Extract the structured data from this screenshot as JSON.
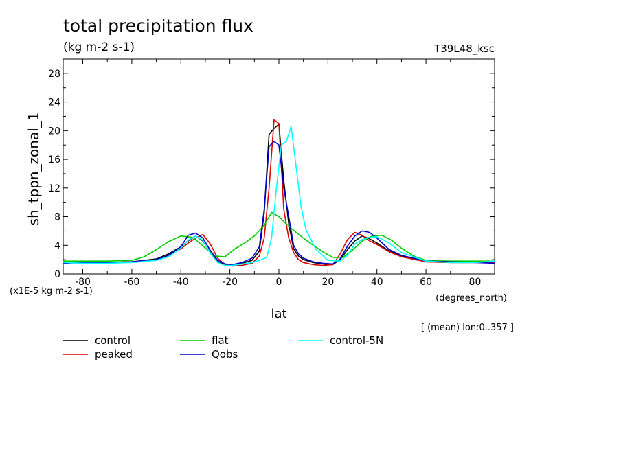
{
  "chart_data": {
    "type": "line",
    "title": "total precipitation flux",
    "subtitle": "(kg m-2 s-1)",
    "run_tag": "T39L48_ksc",
    "xlabel": "lat",
    "xunits": "(degrees_north)",
    "ylabel": "sh_tppn_zonal_1",
    "yscale_note": "(x1E-5 kg m-2 s-1)",
    "mean_note": "[ (mean) lon:0..357 ]",
    "xlim": [
      -88,
      88
    ],
    "ylim": [
      0,
      30
    ],
    "xticks": [
      -80,
      -60,
      -40,
      -20,
      0,
      20,
      40,
      60,
      80
    ],
    "yticks": [
      0,
      4,
      8,
      12,
      16,
      20,
      24,
      28
    ],
    "grid": false,
    "legend_position": "bottom",
    "series": [
      {
        "name": "control",
        "color": "#000000",
        "x": [
          -88,
          -80,
          -70,
          -60,
          -50,
          -45,
          -40,
          -37,
          -34,
          -31,
          -28,
          -25,
          -22,
          -19,
          -15,
          -11,
          -8,
          -6,
          -4,
          -2,
          0,
          2,
          4,
          6,
          8,
          10,
          14,
          18,
          22,
          25,
          28,
          31,
          34,
          37,
          40,
          45,
          50,
          60,
          70,
          80,
          88
        ],
        "y": [
          1.7,
          1.6,
          1.6,
          1.7,
          2.1,
          2.8,
          3.8,
          4.6,
          5.3,
          4.6,
          3.0,
          1.7,
          1.3,
          1.3,
          1.5,
          1.9,
          3.2,
          8.5,
          19.5,
          20.3,
          20.9,
          13.0,
          7.0,
          3.5,
          2.5,
          2.0,
          1.6,
          1.4,
          1.3,
          2.0,
          3.4,
          4.6,
          5.3,
          4.9,
          4.3,
          3.2,
          2.5,
          1.7,
          1.6,
          1.6,
          1.7
        ]
      },
      {
        "name": "peaked",
        "color": "#dd0000",
        "x": [
          -88,
          -80,
          -70,
          -60,
          -50,
          -45,
          -40,
          -37,
          -34,
          -31,
          -28,
          -25,
          -22,
          -19,
          -15,
          -11,
          -8,
          -6,
          -4,
          -2,
          0,
          2,
          4,
          6,
          8,
          10,
          14,
          18,
          22,
          25,
          28,
          31,
          34,
          37,
          40,
          45,
          50,
          60,
          70,
          80,
          88
        ],
        "y": [
          1.6,
          1.6,
          1.6,
          1.7,
          2.0,
          2.6,
          3.5,
          4.3,
          5.0,
          5.5,
          4.2,
          2.2,
          1.3,
          1.1,
          1.2,
          1.5,
          2.5,
          5.0,
          12.0,
          21.5,
          21.0,
          9.0,
          5.0,
          3.0,
          2.0,
          1.6,
          1.3,
          1.2,
          1.3,
          2.8,
          4.8,
          5.8,
          5.4,
          4.6,
          4.1,
          3.1,
          2.4,
          1.7,
          1.6,
          1.6,
          1.6
        ]
      },
      {
        "name": "flat",
        "color": "#00cc00",
        "x": [
          -88,
          -80,
          -70,
          -60,
          -55,
          -50,
          -45,
          -40,
          -35,
          -30,
          -26,
          -22,
          -18,
          -14,
          -10,
          -6,
          -3,
          0,
          3,
          6,
          10,
          14,
          18,
          22,
          26,
          30,
          34,
          38,
          42,
          46,
          50,
          55,
          60,
          70,
          80,
          88
        ],
        "y": [
          1.8,
          1.8,
          1.8,
          1.9,
          2.4,
          3.4,
          4.5,
          5.3,
          5.1,
          3.6,
          2.5,
          2.4,
          3.5,
          4.3,
          5.3,
          6.8,
          8.6,
          8.0,
          7.0,
          6.1,
          5.0,
          4.0,
          3.1,
          2.3,
          2.3,
          3.3,
          4.6,
          5.3,
          5.4,
          4.7,
          3.6,
          2.5,
          1.9,
          1.8,
          1.8,
          1.8
        ]
      },
      {
        "name": "Qobs",
        "color": "#0000cc",
        "x": [
          -88,
          -80,
          -70,
          -60,
          -50,
          -45,
          -40,
          -37,
          -34,
          -31,
          -28,
          -25,
          -22,
          -19,
          -15,
          -11,
          -8,
          -6,
          -4,
          -2,
          0,
          2,
          4,
          6,
          8,
          10,
          14,
          18,
          22,
          25,
          28,
          31,
          34,
          37,
          40,
          45,
          50,
          60,
          70,
          80,
          88
        ],
        "y": [
          1.5,
          1.6,
          1.6,
          1.7,
          2.0,
          2.6,
          3.8,
          5.4,
          5.7,
          5.0,
          3.3,
          1.9,
          1.4,
          1.3,
          1.6,
          2.2,
          3.8,
          9.0,
          17.8,
          18.5,
          18.0,
          12.0,
          8.0,
          4.0,
          2.8,
          2.2,
          1.7,
          1.5,
          1.4,
          2.1,
          3.9,
          5.3,
          6.0,
          5.8,
          5.0,
          3.4,
          2.6,
          1.8,
          1.7,
          1.6,
          1.5
        ]
      },
      {
        "name": "control-5N",
        "color": "#00ffff",
        "x": [
          -88,
          -80,
          -70,
          -60,
          -50,
          -45,
          -40,
          -37,
          -34,
          -31,
          -28,
          -25,
          -22,
          -19,
          -15,
          -11,
          -8,
          -5,
          -3,
          -1,
          1,
          3,
          5,
          7,
          9,
          11,
          15,
          20,
          25,
          28,
          31,
          34,
          37,
          40,
          45,
          50,
          60,
          70,
          80,
          88
        ],
        "y": [
          1.6,
          1.5,
          1.5,
          1.6,
          1.9,
          2.4,
          3.6,
          4.7,
          5.3,
          4.7,
          2.9,
          1.6,
          1.2,
          1.2,
          1.4,
          1.6,
          1.9,
          2.3,
          5.0,
          12.0,
          18.0,
          18.5,
          20.6,
          15.0,
          9.5,
          6.2,
          3.5,
          1.9,
          1.8,
          2.6,
          4.2,
          4.8,
          5.1,
          5.2,
          4.3,
          3.0,
          1.8,
          1.6,
          1.6,
          1.8
        ]
      }
    ]
  }
}
